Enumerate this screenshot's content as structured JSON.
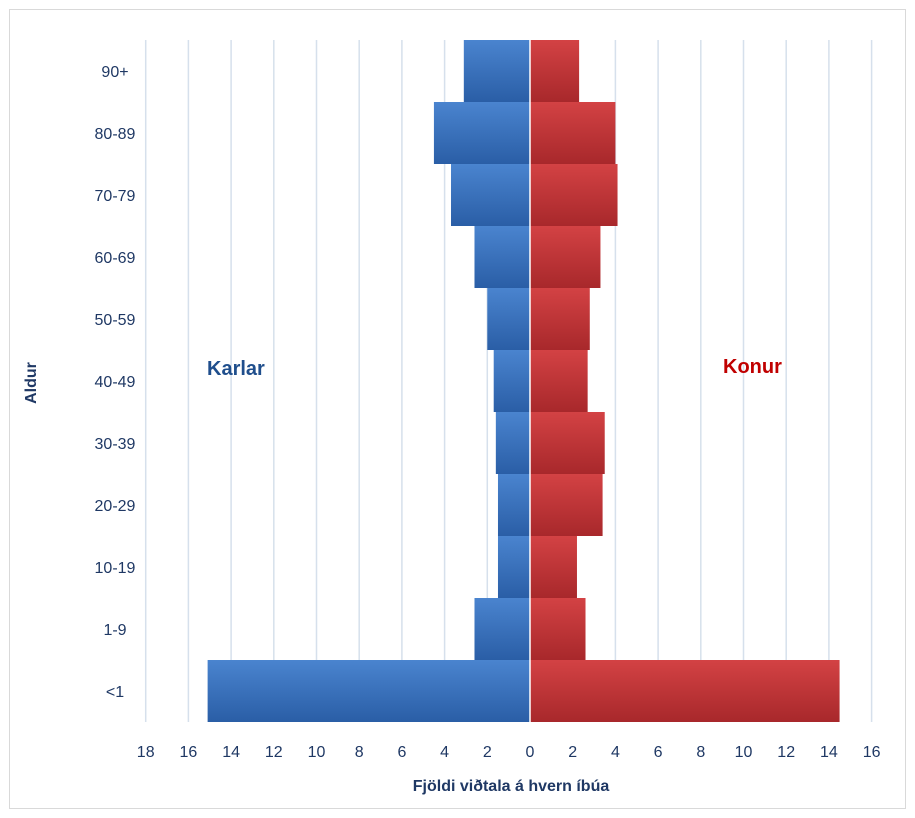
{
  "colors": {
    "male": "#2e64ae",
    "male_light": "#3d78c5",
    "female": "#b22e31",
    "female_light": "#d04043",
    "grid": "#d6e0ec",
    "axis_text": "#1f3864",
    "annot_male": "#1f4e8c",
    "annot_female": "#c00000"
  },
  "chart_data": {
    "type": "bar",
    "orientation": "horizontal",
    "title": "",
    "xlabel": "Fjöldi viðtala á hvern íbúa",
    "ylabel": "Aldur",
    "categories": [
      "90+",
      "80-89",
      "70-79",
      "60-69",
      "50-59",
      "40-49",
      "30-39",
      "20-29",
      "10-19",
      "1-9",
      "<1"
    ],
    "series": [
      {
        "name": "Karlar",
        "values": [
          3.1,
          4.5,
          3.7,
          2.6,
          2.0,
          1.7,
          1.6,
          1.5,
          1.5,
          2.6,
          15.1
        ]
      },
      {
        "name": "Konur",
        "values": [
          2.3,
          4.0,
          4.1,
          3.3,
          2.8,
          2.7,
          3.5,
          3.4,
          2.2,
          2.6,
          14.5
        ]
      }
    ],
    "xlim": [
      -18,
      16
    ],
    "xticks": [
      -18,
      -16,
      -14,
      -12,
      -10,
      -8,
      -6,
      -4,
      -2,
      0,
      2,
      4,
      6,
      8,
      10,
      12,
      14,
      16
    ],
    "xtick_labels": [
      "18",
      "16",
      "14",
      "12",
      "10",
      "8",
      "6",
      "4",
      "2",
      "0",
      "2",
      "4",
      "6",
      "8",
      "10",
      "12",
      "14",
      "16"
    ],
    "grid": true,
    "annotations": [
      {
        "text": "Karlar",
        "series": "Karlar"
      },
      {
        "text": "Konur",
        "series": "Konur"
      }
    ]
  }
}
